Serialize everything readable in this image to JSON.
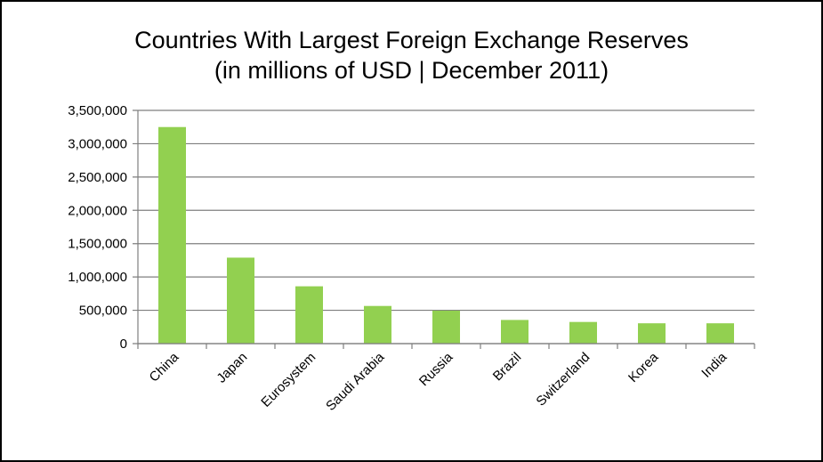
{
  "chart_data": {
    "type": "bar",
    "title": "Countries With Largest Foreign Exchange Reserves",
    "subtitle": "(in millions of USD | December 2011)",
    "categories": [
      "China",
      "Japan",
      "Eurosystem",
      "Saudi Arabia",
      "Russia",
      "Brazil",
      "Switzerland",
      "Korea",
      "India"
    ],
    "series": [
      {
        "values": [
          3250000,
          1290000,
          860000,
          565000,
          495000,
          355000,
          325000,
          305000,
          305000
        ],
        "color": "#92d050"
      }
    ],
    "xlabel": "",
    "ylabel": "",
    "ylim": [
      0,
      3500000
    ],
    "yticks": [
      0,
      500000,
      1000000,
      1500000,
      2000000,
      2500000,
      3000000,
      3500000
    ],
    "ytick_labels": [
      "0",
      "500,000",
      "1,000,000",
      "1,500,000",
      "2,000,000",
      "2,500,000",
      "3,000,000",
      "3,500,000"
    ],
    "grid": true,
    "legend": "none",
    "colors": {
      "bar": "#92d050",
      "gridline": "#7f7f7f",
      "axis": "#7f7f7f",
      "frame": "#000000"
    }
  }
}
